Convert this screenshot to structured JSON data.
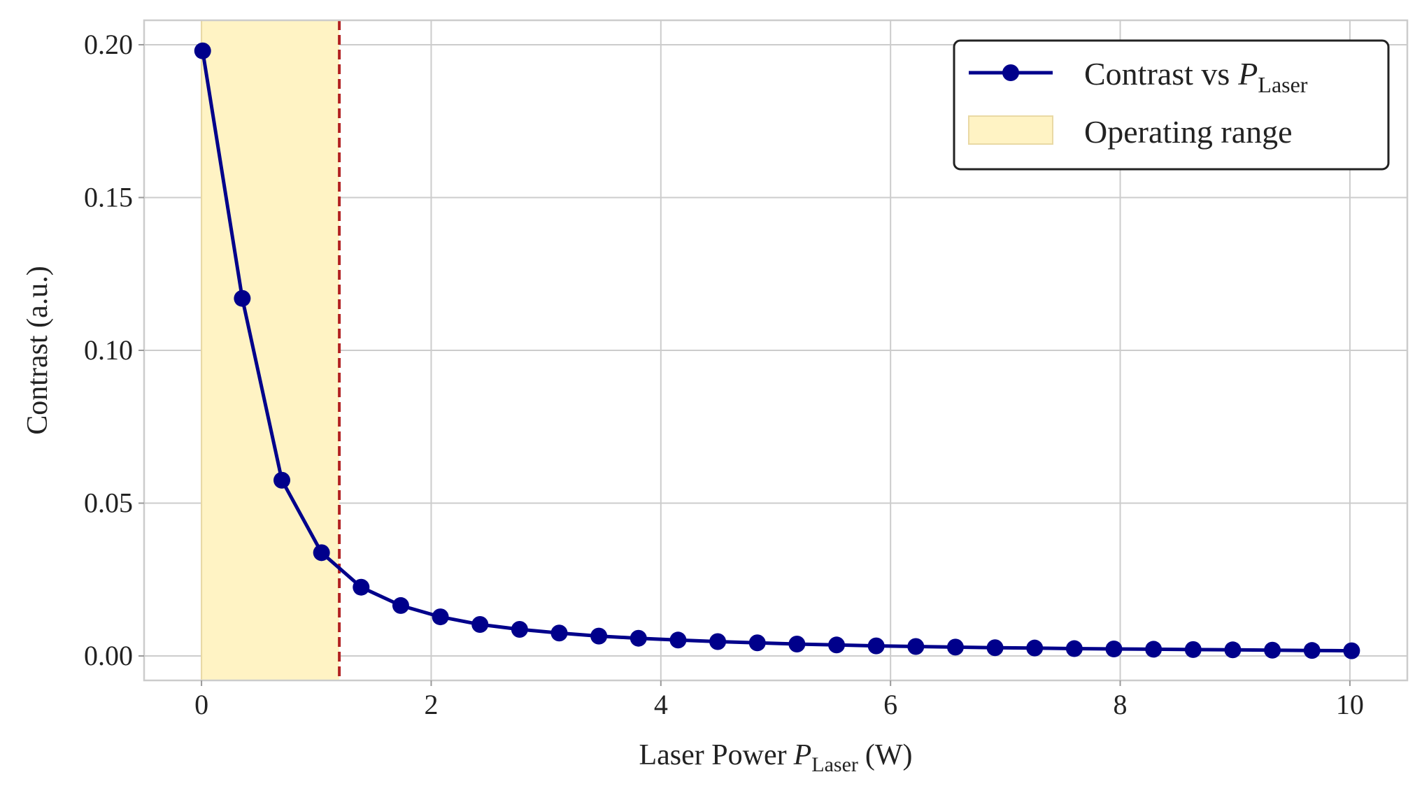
{
  "chart_data": {
    "type": "line",
    "xlabel": "Laser Power",
    "xlabel_symbol": "P",
    "xlabel_subscript": "Laser",
    "xlabel_unit": "(W)",
    "ylabel": "Contrast (a.u.)",
    "xlim": [
      -0.5,
      10.5
    ],
    "ylim": [
      -0.008,
      0.208
    ],
    "xticks": [
      0,
      2,
      4,
      6,
      8,
      10
    ],
    "xtick_labels": [
      "0",
      "2",
      "4",
      "6",
      "8",
      "10"
    ],
    "yticks": [
      0.0,
      0.05,
      0.1,
      0.15,
      0.2
    ],
    "ytick_labels": [
      "0.00",
      "0.05",
      "0.10",
      "0.15",
      "0.20"
    ],
    "grid": true,
    "legend_position": "top-right",
    "series": [
      {
        "legend_main": "Contrast vs",
        "legend_symbol": "P",
        "legend_subscript": "Laser",
        "color": "#00008b",
        "marker": "circle",
        "x": [
          0.01,
          0.355,
          0.7,
          1.045,
          1.39,
          1.735,
          2.08,
          2.425,
          2.77,
          3.115,
          3.46,
          3.805,
          4.15,
          4.495,
          4.84,
          5.185,
          5.53,
          5.875,
          6.22,
          6.565,
          6.91,
          7.255,
          7.6,
          7.945,
          8.29,
          8.635,
          8.98,
          9.325,
          9.67,
          10.015
        ],
        "y": [
          0.198,
          0.117,
          0.0575,
          0.0338,
          0.0225,
          0.0165,
          0.0128,
          0.0103,
          0.0087,
          0.0075,
          0.0065,
          0.0058,
          0.0052,
          0.0047,
          0.0043,
          0.0039,
          0.0036,
          0.0033,
          0.0031,
          0.0029,
          0.0027,
          0.0026,
          0.0024,
          0.0023,
          0.0022,
          0.0021,
          0.002,
          0.0019,
          0.0018,
          0.0017
        ]
      }
    ],
    "operating_range": {
      "legend_label": "Operating range",
      "x_start": 0.0,
      "x_end": 1.2,
      "fill_color": "#fff3c4",
      "edge_color": "#e9d9a4",
      "boundary_line_color": "#b22222"
    }
  }
}
